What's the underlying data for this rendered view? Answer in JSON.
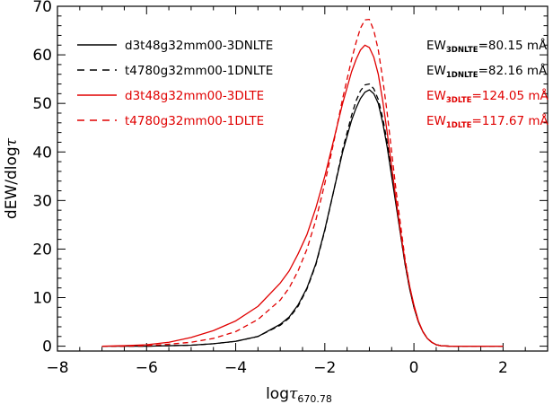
{
  "chart_data": {
    "type": "line",
    "xlabel": {
      "prefix": "log",
      "tau": "τ",
      "sub": "670.78"
    },
    "ylabel": {
      "prefix": "dEW/dlog",
      "tau": "τ"
    },
    "xlim": [
      -8,
      3
    ],
    "ylim": [
      -1,
      70
    ],
    "xticks": [
      -8,
      -6,
      -4,
      -2,
      0,
      2
    ],
    "yticks": [
      0,
      10,
      20,
      30,
      40,
      50,
      60,
      70
    ],
    "legend_position": "top-left",
    "grid": false,
    "series": [
      {
        "name": "d3t48g32mm00-3DNLTE",
        "color": "#000000",
        "dash": "solid",
        "ew": {
          "base": "EW",
          "sub": "3DNLTE",
          "value": "=80.15 mÅ"
        },
        "x": [
          -7.0,
          -6.5,
          -6.0,
          -5.5,
          -5.0,
          -4.5,
          -4.0,
          -3.5,
          -3.0,
          -2.8,
          -2.6,
          -2.4,
          -2.2,
          -2.0,
          -1.8,
          -1.6,
          -1.4,
          -1.3,
          -1.2,
          -1.1,
          -1.0,
          -0.9,
          -0.8,
          -0.7,
          -0.6,
          -0.5,
          -0.4,
          -0.3,
          -0.2,
          -0.1,
          0.0,
          0.1,
          0.2,
          0.3,
          0.4,
          0.5,
          0.6,
          0.8,
          1.0,
          1.5,
          2.0
        ],
        "y": [
          0.0,
          0.0,
          0.0,
          0.1,
          0.2,
          0.5,
          1.0,
          2.0,
          4.5,
          6.0,
          8.5,
          12.0,
          17.0,
          24.0,
          32.0,
          40.0,
          46.5,
          49.0,
          51.0,
          52.3,
          52.8,
          52.0,
          50.0,
          46.0,
          41.0,
          35.0,
          29.0,
          23.0,
          17.0,
          12.0,
          8.0,
          5.0,
          3.0,
          1.6,
          0.8,
          0.3,
          0.1,
          0.0,
          0.0,
          0.0,
          0.0
        ]
      },
      {
        "name": "t4780g32mm00-1DNLTE",
        "color": "#000000",
        "dash": "dashed",
        "ew": {
          "base": "EW",
          "sub": "1DNLTE",
          "value": "=82.16 mÅ"
        },
        "x": [
          -7.0,
          -6.5,
          -6.0,
          -5.5,
          -5.0,
          -4.5,
          -4.0,
          -3.5,
          -3.0,
          -2.8,
          -2.6,
          -2.4,
          -2.2,
          -2.0,
          -1.8,
          -1.6,
          -1.4,
          -1.3,
          -1.2,
          -1.1,
          -1.0,
          -0.9,
          -0.8,
          -0.7,
          -0.6,
          -0.5,
          -0.4,
          -0.3,
          -0.2,
          -0.1,
          0.0,
          0.1,
          0.2,
          0.3,
          0.4,
          0.5,
          0.6,
          0.8,
          1.0,
          1.5,
          2.0
        ],
        "y": [
          0.0,
          0.0,
          0.0,
          0.1,
          0.2,
          0.5,
          1.0,
          2.0,
          4.3,
          5.8,
          8.2,
          11.8,
          16.8,
          23.8,
          32.0,
          40.5,
          47.5,
          50.5,
          52.6,
          53.8,
          54.0,
          53.0,
          50.8,
          47.0,
          42.0,
          36.0,
          29.5,
          23.0,
          17.0,
          12.0,
          8.0,
          5.0,
          3.0,
          1.6,
          0.8,
          0.3,
          0.1,
          0.0,
          0.0,
          0.0,
          0.0
        ]
      },
      {
        "name": "d3t48g32mm00-3DLTE",
        "color": "#e00000",
        "dash": "solid",
        "ew": {
          "base": "EW",
          "sub": "3DLTE",
          "value": "=124.05 mÅ"
        },
        "x": [
          -7.0,
          -6.5,
          -6.0,
          -5.5,
          -5.0,
          -4.5,
          -4.0,
          -3.5,
          -3.0,
          -2.8,
          -2.6,
          -2.4,
          -2.2,
          -2.0,
          -1.8,
          -1.6,
          -1.4,
          -1.3,
          -1.2,
          -1.1,
          -1.0,
          -0.9,
          -0.8,
          -0.7,
          -0.6,
          -0.5,
          -0.4,
          -0.3,
          -0.2,
          -0.1,
          0.0,
          0.1,
          0.2,
          0.3,
          0.4,
          0.5,
          0.6,
          0.8,
          1.0,
          1.5,
          2.0
        ],
        "y": [
          0.0,
          0.1,
          0.3,
          0.8,
          1.8,
          3.2,
          5.2,
          8.2,
          13.0,
          15.5,
          19.0,
          23.0,
          28.5,
          35.0,
          42.5,
          50.0,
          56.5,
          59.0,
          61.0,
          62.0,
          61.5,
          59.5,
          56.0,
          50.5,
          44.0,
          37.0,
          30.0,
          23.5,
          17.5,
          12.5,
          8.5,
          5.2,
          3.0,
          1.6,
          0.8,
          0.3,
          0.1,
          0.0,
          0.0,
          0.0,
          0.0
        ]
      },
      {
        "name": "t4780g32mm00-1DLTE",
        "color": "#e00000",
        "dash": "dashed",
        "ew": {
          "base": "EW",
          "sub": "1DLTE",
          "value": "=117.67 mÅ"
        },
        "x": [
          -7.0,
          -6.5,
          -6.0,
          -5.5,
          -5.0,
          -4.5,
          -4.0,
          -3.5,
          -3.0,
          -2.8,
          -2.6,
          -2.4,
          -2.2,
          -2.0,
          -1.8,
          -1.6,
          -1.4,
          -1.3,
          -1.2,
          -1.1,
          -1.0,
          -0.9,
          -0.8,
          -0.7,
          -0.6,
          -0.5,
          -0.4,
          -0.3,
          -0.2,
          -0.1,
          0.0,
          0.1,
          0.2,
          0.3,
          0.4,
          0.5,
          0.6,
          0.8,
          1.0,
          1.5,
          2.0
        ],
        "y": [
          0.0,
          0.0,
          0.1,
          0.4,
          0.8,
          1.6,
          3.0,
          5.5,
          9.5,
          12.0,
          15.5,
          20.0,
          26.0,
          33.5,
          42.0,
          51.0,
          59.0,
          62.5,
          65.5,
          67.2,
          67.3,
          65.0,
          61.0,
          55.0,
          48.0,
          40.0,
          32.0,
          25.0,
          18.0,
          12.5,
          8.0,
          5.0,
          3.0,
          1.6,
          0.8,
          0.3,
          0.1,
          0.0,
          0.0,
          0.0,
          0.0
        ]
      }
    ]
  }
}
